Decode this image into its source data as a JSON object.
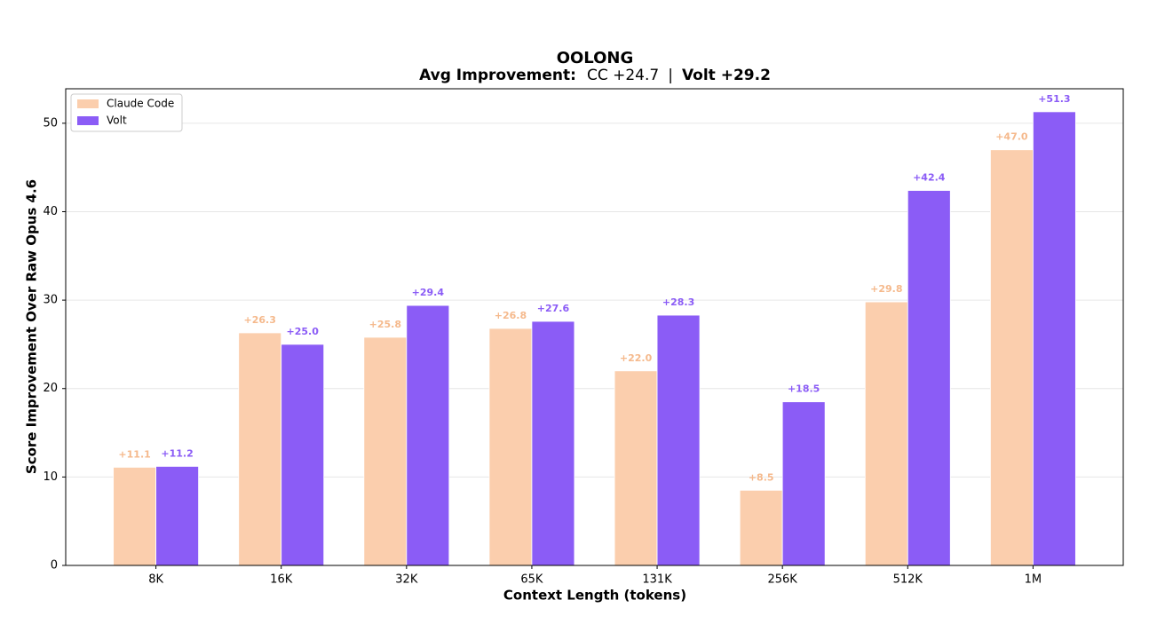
{
  "chart_data": {
    "type": "bar",
    "title": "OOLONG",
    "subtitle": [
      "Avg Improvement:",
      "CC +24.7",
      "|",
      "Volt +29.2"
    ],
    "x_label": "Context Length (tokens)",
    "y_label": "Score Improvement Over Raw Opus 4.6",
    "categories": [
      "8K",
      "16K",
      "32K",
      "65K",
      "131K",
      "256K",
      "512K",
      "1M"
    ],
    "series": [
      {
        "name": "Claude Code",
        "color": "#fbcead",
        "label_color": "#f5b98c",
        "values": [
          11.1,
          26.3,
          25.8,
          26.8,
          22.0,
          8.5,
          29.8,
          47.0
        ],
        "value_labels": [
          "+11.1",
          "+26.3",
          "+25.8",
          "+26.8",
          "+22.0",
          "+8.5",
          "+29.8",
          "+47.0"
        ]
      },
      {
        "name": "Volt",
        "color": "#8b5cf6",
        "label_color": "#8b5cf6",
        "values": [
          11.2,
          25.0,
          29.4,
          27.6,
          28.3,
          18.5,
          42.4,
          51.3
        ],
        "value_labels": [
          "+11.2",
          "+25.0",
          "+29.4",
          "+27.6",
          "+28.3",
          "+18.5",
          "+42.4",
          "+51.3"
        ]
      }
    ],
    "ylim": [
      0,
      53.9
    ],
    "yticks": [
      0,
      10,
      20,
      30,
      40,
      50
    ],
    "grid": true,
    "legend": "upper-left"
  }
}
